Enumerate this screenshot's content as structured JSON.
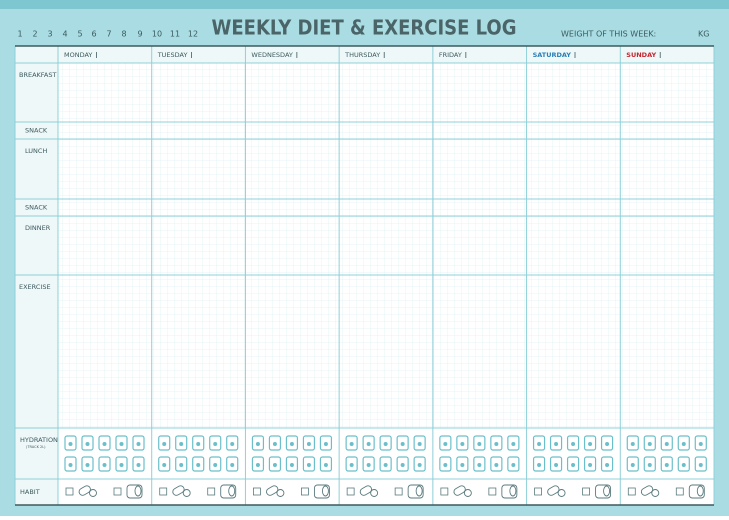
{
  "header": {
    "months": [
      1,
      2,
      3,
      4,
      5,
      6,
      7,
      8,
      9,
      10,
      11,
      12
    ],
    "title": "WEEKLY DIET & EXERCISE LOG",
    "weight_label": "WEIGHT OF THIS WEEK:",
    "unit": "KG"
  },
  "table": {
    "days": [
      "MONDAY",
      "TUESDAY",
      "WEDNESDAY",
      "THURSDAY",
      "FRIDAY",
      "SATURDAY",
      "SUNDAY"
    ],
    "rows": [
      "BREAKFAST",
      "SNACK",
      "LUNCH",
      "SNACK",
      "DINNER",
      "EXERCISE",
      "HYDRATION",
      "HABIT"
    ],
    "hydration_note": "(TRACK 2L)"
  }
}
